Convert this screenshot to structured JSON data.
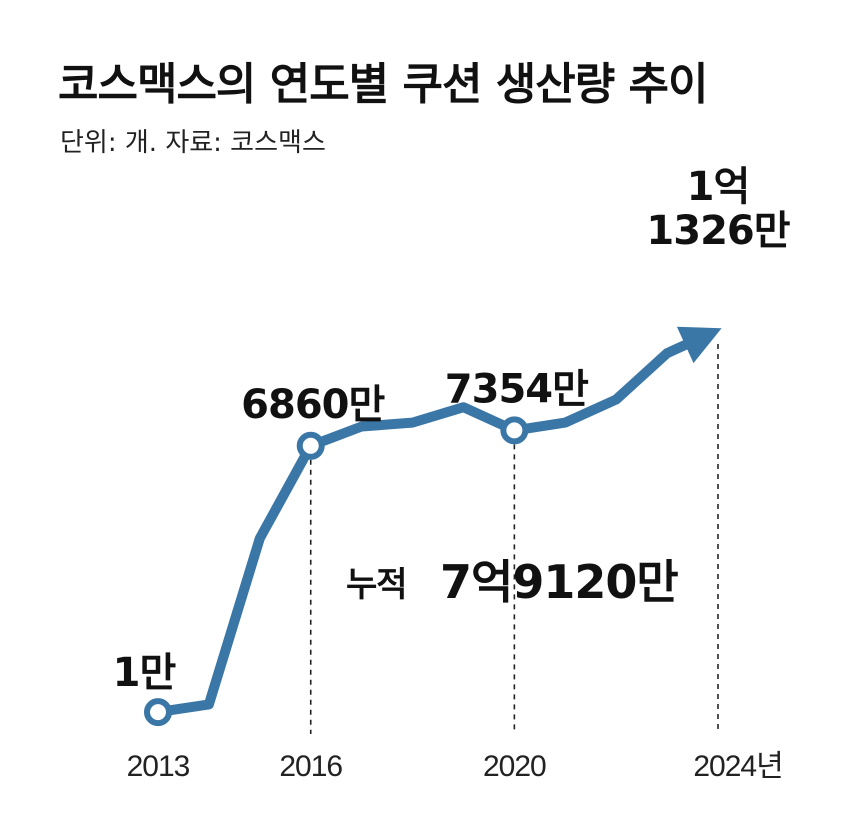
{
  "title": "코스맥스의 연도별 쿠션 생산량 추이",
  "subtitle": "단위: 개. 자료: 코스맥스",
  "total": {
    "label": "누적",
    "value": "7억9120만"
  },
  "colors": {
    "line": "#3a76a6",
    "total_value": "#2a5f8a"
  },
  "chart_data": {
    "type": "line",
    "x": [
      2013,
      2014,
      2015,
      2016,
      2017,
      2018,
      2019,
      2020,
      2021,
      2022,
      2023,
      2024
    ],
    "y_relative_visual": [
      0.01,
      0.03,
      0.46,
      0.7,
      0.75,
      0.76,
      0.8,
      0.74,
      0.76,
      0.82,
      0.94,
      1.0
    ],
    "tick_labels": [
      "2013",
      "2016",
      "2020",
      "2024년"
    ],
    "tick_years": [
      2013,
      2016,
      2020,
      2024
    ],
    "marked_years": [
      2013,
      2016,
      2020
    ],
    "annotations": [
      {
        "year": 2013,
        "text": [
          "1만"
        ]
      },
      {
        "year": 2016,
        "text": [
          "6860만"
        ]
      },
      {
        "year": 2020,
        "text": [
          "7354만"
        ]
      },
      {
        "year": 2024,
        "text": [
          "1억",
          "1326만"
        ]
      }
    ],
    "end_arrow": true
  }
}
